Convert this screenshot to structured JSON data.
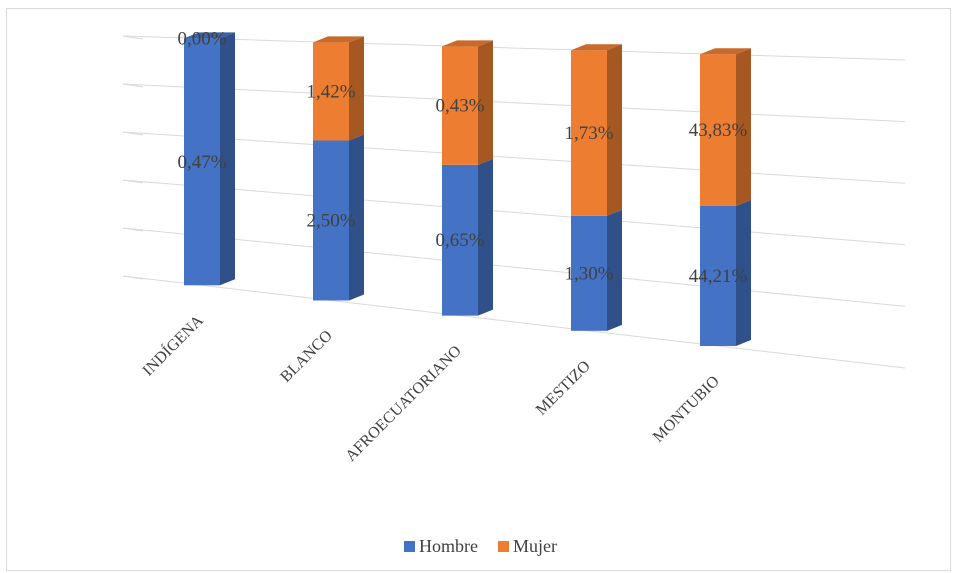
{
  "chart_data": {
    "type": "bar",
    "stacked": true,
    "three_d": true,
    "title": "",
    "categories": [
      "INDÍGENA",
      "BLANCO",
      "AFROECUATORIANO",
      "MESTIZO",
      "MONTUBIO"
    ],
    "series": [
      {
        "name": "Hombre",
        "color": "#4472c4",
        "values": [
          100,
          62,
          56,
          41,
          48
        ],
        "labels": [
          "0,47%",
          "2,50%",
          "0,65%",
          "1,30%",
          "44,21%"
        ]
      },
      {
        "name": "Mujer",
        "color": "#ed7d31",
        "values": [
          0,
          38,
          44,
          59,
          52
        ],
        "labels": [
          "0,00%",
          "1,42%",
          "0,43%",
          "1,73%",
          "43,83%"
        ]
      }
    ],
    "value_unit": "percent of category total",
    "gridlines": true,
    "legend_position": "bottom"
  }
}
